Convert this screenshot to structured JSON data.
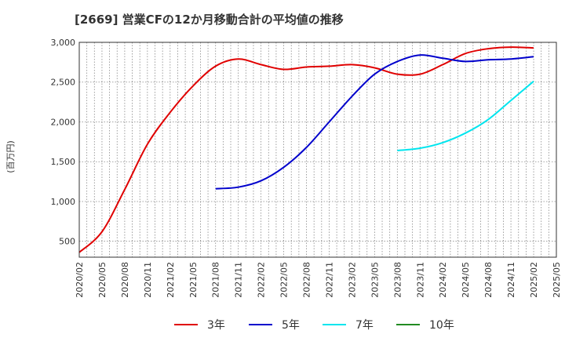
{
  "chart_data": {
    "type": "line",
    "title": "[2669]  営業CFの12か月移動合計の平均値の推移",
    "ylabel": "(百万円)",
    "xlabel": "",
    "ylim": [
      300,
      3000
    ],
    "y_ticks": [
      500,
      1000,
      1500,
      2000,
      2500,
      3000
    ],
    "y_tick_labels": [
      "500",
      "1,000",
      "1,500",
      "2,000",
      "2,500",
      "3,000"
    ],
    "x_ticks": [
      "2020/02",
      "2020/05",
      "2020/08",
      "2020/11",
      "2021/02",
      "2021/05",
      "2021/08",
      "2021/11",
      "2022/02",
      "2022/05",
      "2022/08",
      "2022/11",
      "2023/02",
      "2023/05",
      "2023/08",
      "2023/11",
      "2024/02",
      "2024/05",
      "2024/08",
      "2024/11",
      "2025/02",
      "2025/05"
    ],
    "grid": true,
    "legend_position": "bottom",
    "series": [
      {
        "name": "3年",
        "color": "#e00000",
        "x": [
          "2020/02",
          "2020/05",
          "2020/08",
          "2020/11",
          "2021/02",
          "2021/05",
          "2021/08",
          "2021/11",
          "2022/02",
          "2022/05",
          "2022/08",
          "2022/11",
          "2023/02",
          "2023/05",
          "2023/08",
          "2023/11",
          "2024/02",
          "2024/05",
          "2024/08",
          "2024/11",
          "2025/02"
        ],
        "values": [
          360,
          620,
          1150,
          1720,
          2120,
          2450,
          2700,
          2790,
          2720,
          2660,
          2690,
          2700,
          2720,
          2680,
          2600,
          2600,
          2720,
          2860,
          2920,
          2940,
          2930
        ]
      },
      {
        "name": "5年",
        "color": "#0000cc",
        "x": [
          "2021/08",
          "2021/11",
          "2022/02",
          "2022/05",
          "2022/08",
          "2022/11",
          "2023/02",
          "2023/05",
          "2023/08",
          "2023/11",
          "2024/02",
          "2024/05",
          "2024/08",
          "2024/11",
          "2025/02"
        ],
        "values": [
          1160,
          1180,
          1260,
          1430,
          1680,
          2000,
          2320,
          2600,
          2760,
          2840,
          2800,
          2760,
          2780,
          2790,
          2820
        ]
      },
      {
        "name": "7年",
        "color": "#00e5ee",
        "x": [
          "2023/08",
          "2023/11",
          "2024/02",
          "2024/05",
          "2024/08",
          "2024/11",
          "2025/02"
        ],
        "values": [
          1640,
          1670,
          1740,
          1860,
          2030,
          2270,
          2510
        ]
      },
      {
        "name": "10年",
        "color": "#228b22",
        "x": [],
        "values": []
      }
    ]
  }
}
